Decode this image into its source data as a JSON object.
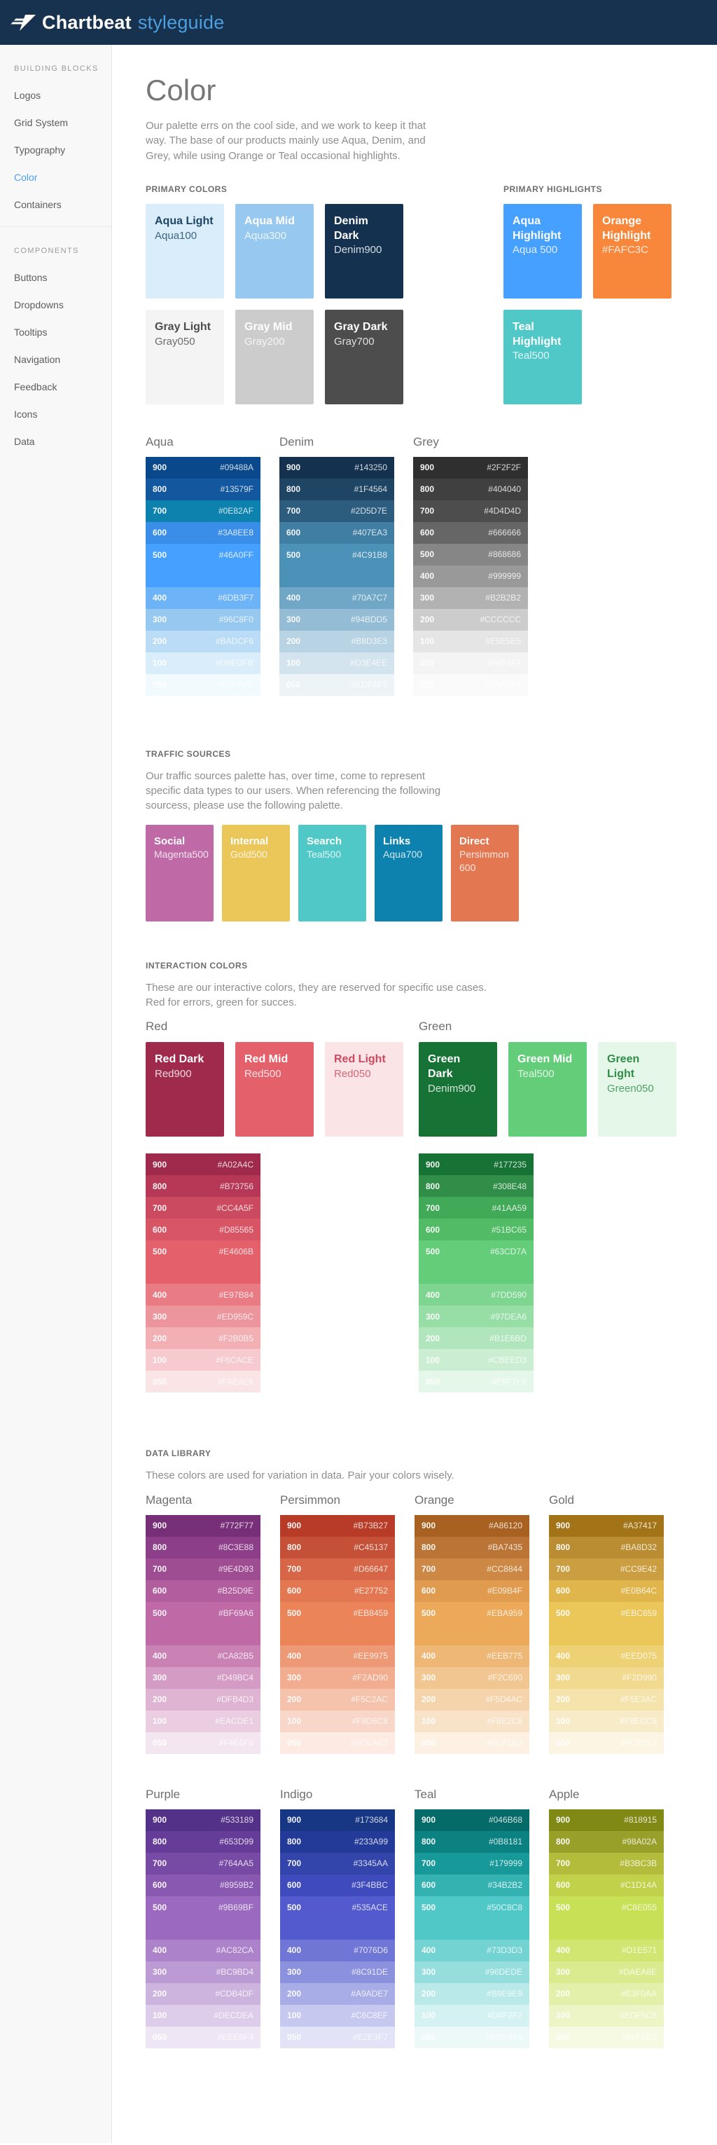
{
  "theme": {
    "navbar_bg": "#16324E",
    "brand_text_color": "#FFFFFF",
    "brand_suffix_color": "#4D9FE0",
    "sidebar_active_color": "#4A9FF5"
  },
  "navbar": {
    "brand": "Chartbeat",
    "suffix": "styleguide"
  },
  "sidebar": {
    "sections": [
      {
        "title": "BUILDING BLOCKS",
        "items": [
          {
            "label": "Logos",
            "active": false
          },
          {
            "label": "Grid System",
            "active": false
          },
          {
            "label": "Typography",
            "active": false
          },
          {
            "label": "Color",
            "active": true
          },
          {
            "label": "Containers",
            "active": false
          }
        ]
      },
      {
        "title": "COMPONENTS",
        "items": [
          {
            "label": "Buttons",
            "active": false
          },
          {
            "label": "Dropdowns",
            "active": false
          },
          {
            "label": "Tooltips",
            "active": false
          },
          {
            "label": "Navigation",
            "active": false
          },
          {
            "label": "Feedback",
            "active": false
          },
          {
            "label": "Icons",
            "active": false
          },
          {
            "label": "Data",
            "active": false
          }
        ]
      }
    ]
  },
  "page": {
    "title": "Color",
    "intro": "Our palette errs on the cool side, and we work to keep it that way. The base of our products mainly use Aqua, Denim, and Grey, while using Orange or Teal occasional highlights."
  },
  "primary_colors": {
    "label": "PRIMARY COLORS",
    "cards": [
      {
        "name": "Aqua Light",
        "token": "Aqua100",
        "bg": "#D9EDFB",
        "text": "#1F4564"
      },
      {
        "name": "Aqua Mid",
        "token": "Aqua300",
        "bg": "#96C8F0",
        "text": "#FFFFFF"
      },
      {
        "name": "Denim Dark",
        "token": "Denim900",
        "bg": "#143250",
        "text": "#FFFFFF"
      },
      {
        "name": "Gray Light",
        "token": "Gray050",
        "bg": "#F4F4F4",
        "text": "#4D4D4D"
      },
      {
        "name": "Gray Mid",
        "token": "Gray200",
        "bg": "#CCCCCC",
        "text": "#FFFFFF"
      },
      {
        "name": "Gray Dark",
        "token": "Gray700",
        "bg": "#4D4D4D",
        "text": "#FFFFFF"
      }
    ]
  },
  "primary_highlights": {
    "label": "PRIMARY HIGHLIGHTS",
    "cards": [
      {
        "name": "Aqua Highlight",
        "token": "Aqua 500",
        "bg": "#46A0FF",
        "text": "#FFFFFF"
      },
      {
        "name": "Orange Highlight",
        "token": "#FAFC3C",
        "bg": "#F8873C",
        "text": "#FFFFFF"
      },
      {
        "name": "Teal Highlight",
        "token": "Teal500",
        "bg": "#50C8C8",
        "text": "#FFFFFF"
      }
    ]
  },
  "scales_primary": [
    {
      "title": "Aqua",
      "tall_500": true,
      "rows": [
        [
          "900",
          "#09488A"
        ],
        [
          "800",
          "#13579F"
        ],
        [
          "700",
          "#0E82AF"
        ],
        [
          "600",
          "#3A8EE8"
        ],
        [
          "500",
          "#46A0FF"
        ],
        [
          "400",
          "#6DB3F7"
        ],
        [
          "300",
          "#96C8F0"
        ],
        [
          "200",
          "#BADCF6"
        ],
        [
          "100",
          "#D9EDFB"
        ],
        [
          "050",
          "#F0FAFF"
        ]
      ]
    },
    {
      "title": "Denim",
      "tall_500": true,
      "rows": [
        [
          "900",
          "#143250"
        ],
        [
          "800",
          "#1F4564"
        ],
        [
          "700",
          "#2D5D7E"
        ],
        [
          "600",
          "#407EA3"
        ],
        [
          "500",
          "#4C91B8"
        ],
        [
          "400",
          "#70A7C7"
        ],
        [
          "300",
          "#94BDD5"
        ],
        [
          "200",
          "#B8D3E3"
        ],
        [
          "100",
          "#D3E4EE"
        ],
        [
          "050",
          "#EDF4F7"
        ]
      ]
    },
    {
      "title": "Grey",
      "tall_500": false,
      "rows": [
        [
          "900",
          "#2F2F2F"
        ],
        [
          "800",
          "#404040"
        ],
        [
          "700",
          "#4D4D4D"
        ],
        [
          "600",
          "#666666"
        ],
        [
          "500",
          "#868686"
        ],
        [
          "400",
          "#999999"
        ],
        [
          "300",
          "#B2B2B2"
        ],
        [
          "200",
          "#CCCCCC"
        ],
        [
          "100",
          "#E5E5E5"
        ],
        [
          "050",
          "#F4F4F4"
        ],
        [
          "025",
          "#FAFAFA"
        ]
      ]
    }
  ],
  "traffic": {
    "label": "TRAFFIC SOURCES",
    "desc": "Our traffic sources palette has, over time, come to represent specific data types to our users. When referencing the following sourcess, please use the following palette.",
    "cards": [
      {
        "name": "Social",
        "token": "Magenta500",
        "bg": "#BF69A6"
      },
      {
        "name": "Internal",
        "token": "Gold500",
        "bg": "#EBC659"
      },
      {
        "name": "Search",
        "token": "Teal500",
        "bg": "#50C8C8"
      },
      {
        "name": "Links",
        "token": "Aqua700",
        "bg": "#0E82AF"
      },
      {
        "name": "Direct",
        "token": "Persimmon 600",
        "bg": "#E27752"
      }
    ]
  },
  "interaction": {
    "label": "INTERACTION COLORS",
    "desc_line1": "These are our interactive colors, they are reserved for specific use cases.",
    "desc_line2": "Red for errors, green for succes.",
    "groups": [
      {
        "title": "Red",
        "cards": [
          {
            "name": "Red Dark",
            "token": "Red900",
            "bg": "#A02A4C",
            "text": "#FFFFFF"
          },
          {
            "name": "Red Mid",
            "token": "Red500",
            "bg": "#E4606B",
            "text": "#FFFFFF"
          },
          {
            "name": "Red Light",
            "token": "Red050",
            "bg": "#FAE4E6",
            "text": "#CC4A5F"
          }
        ],
        "scale": {
          "tall_500": true,
          "rows": [
            [
              "900",
              "#A02A4C"
            ],
            [
              "800",
              "#B73756"
            ],
            [
              "700",
              "#CC4A5F"
            ],
            [
              "600",
              "#D85565"
            ],
            [
              "500",
              "#E4606B"
            ],
            [
              "400",
              "#E97B84"
            ],
            [
              "300",
              "#ED959C"
            ],
            [
              "200",
              "#F2B0B5"
            ],
            [
              "100",
              "#F6CACE"
            ],
            [
              "050",
              "#FAE4E6"
            ]
          ]
        }
      },
      {
        "title": "Green",
        "cards": [
          {
            "name": "Green Dark",
            "token": "Denim900",
            "bg": "#177235",
            "text": "#FFFFFF"
          },
          {
            "name": "Green Mid",
            "token": "Teal500",
            "bg": "#63CD7A",
            "text": "#FFFFFF"
          },
          {
            "name": "Green Light",
            "token": "Green050",
            "bg": "#E5F7E9",
            "text": "#308E48"
          }
        ],
        "scale": {
          "tall_500": true,
          "rows": [
            [
              "900",
              "#177235"
            ],
            [
              "800",
              "#308E48"
            ],
            [
              "700",
              "#41AA59"
            ],
            [
              "600",
              "#51BC65"
            ],
            [
              "500",
              "#63CD7A"
            ],
            [
              "400",
              "#7DD590"
            ],
            [
              "300",
              "#97DEA6"
            ],
            [
              "200",
              "#B1E6BD"
            ],
            [
              "100",
              "#CBEED3"
            ],
            [
              "050",
              "#E5F7E9"
            ]
          ]
        }
      }
    ]
  },
  "data_library": {
    "label": "DATA LIBRARY",
    "desc": "These colors are used for variation in data. Pair your colors wisely.",
    "rows": [
      [
        {
          "title": "Magenta",
          "tall_500": true,
          "rows": [
            [
              "900",
              "#772F77"
            ],
            [
              "800",
              "#8C3E88"
            ],
            [
              "700",
              "#9E4D93"
            ],
            [
              "600",
              "#B25D9E"
            ],
            [
              "500",
              "#BF69A6"
            ],
            [
              "400",
              "#CA82B5"
            ],
            [
              "300",
              "#D49BC4"
            ],
            [
              "200",
              "#DFB4D3"
            ],
            [
              "100",
              "#EACDE1"
            ],
            [
              "050",
              "#F4E6F0"
            ]
          ]
        },
        {
          "title": "Persimmon",
          "tall_500": true,
          "rows": [
            [
              "900",
              "#B73B27"
            ],
            [
              "800",
              "#C45137"
            ],
            [
              "700",
              "#D66647"
            ],
            [
              "600",
              "#E27752"
            ],
            [
              "500",
              "#EB8459"
            ],
            [
              "400",
              "#EE9975"
            ],
            [
              "300",
              "#F2AD90"
            ],
            [
              "200",
              "#F5C2AC"
            ],
            [
              "100",
              "#F8D6C8"
            ],
            [
              "050",
              "#FCEAE3"
            ]
          ]
        },
        {
          "title": "Orange",
          "tall_500": true,
          "rows": [
            [
              "900",
              "#A86120"
            ],
            [
              "800",
              "#BA7435"
            ],
            [
              "700",
              "#CC8844"
            ],
            [
              "600",
              "#E09B4F"
            ],
            [
              "500",
              "#EBA959"
            ],
            [
              "400",
              "#EEB775"
            ],
            [
              "300",
              "#F2C690"
            ],
            [
              "200",
              "#F5D4AC"
            ],
            [
              "100",
              "#F8E2C8"
            ],
            [
              "050",
              "#FCF1E3"
            ]
          ]
        },
        {
          "title": "Gold",
          "tall_500": true,
          "rows": [
            [
              "900",
              "#A37417"
            ],
            [
              "800",
              "#BA8D32"
            ],
            [
              "700",
              "#CC9E42"
            ],
            [
              "600",
              "#E0B64C"
            ],
            [
              "500",
              "#EBC659"
            ],
            [
              "400",
              "#EED075"
            ],
            [
              "300",
              "#F2D990"
            ],
            [
              "200",
              "#F5E3AC"
            ],
            [
              "100",
              "#F8ECC8"
            ],
            [
              "050",
              "#FCF5E3"
            ]
          ]
        }
      ],
      [
        {
          "title": "Purple",
          "tall_500": true,
          "rows": [
            [
              "900",
              "#533189"
            ],
            [
              "800",
              "#653D99"
            ],
            [
              "700",
              "#764AA5"
            ],
            [
              "600",
              "#8959B2"
            ],
            [
              "500",
              "#9B69BF"
            ],
            [
              "400",
              "#AC82CA"
            ],
            [
              "300",
              "#BC9BD4"
            ],
            [
              "200",
              "#CDB4DF"
            ],
            [
              "100",
              "#DECDEA"
            ],
            [
              "050",
              "#EEE6F4"
            ]
          ]
        },
        {
          "title": "Indigo",
          "tall_500": true,
          "rows": [
            [
              "900",
              "#173684"
            ],
            [
              "800",
              "#233A99"
            ],
            [
              "700",
              "#3345AA"
            ],
            [
              "600",
              "#3F4BBC"
            ],
            [
              "500",
              "#535ACE"
            ],
            [
              "400",
              "#7076D6"
            ],
            [
              "300",
              "#8C91DE"
            ],
            [
              "200",
              "#A9ADE7"
            ],
            [
              "100",
              "#C6C8EF"
            ],
            [
              "050",
              "#E2E3F7"
            ]
          ]
        },
        {
          "title": "Teal",
          "tall_500": true,
          "rows": [
            [
              "900",
              "#046B68"
            ],
            [
              "800",
              "#0B8181"
            ],
            [
              "700",
              "#179999"
            ],
            [
              "600",
              "#34B2B2"
            ],
            [
              "500",
              "#50C8C8"
            ],
            [
              "400",
              "#73D3D3"
            ],
            [
              "300",
              "#96DEDE"
            ],
            [
              "200",
              "#B9E9E9"
            ],
            [
              "100",
              "#D4F2F2"
            ],
            [
              "050",
              "#EDF9F9"
            ]
          ]
        },
        {
          "title": "Apple",
          "tall_500": true,
          "rows": [
            [
              "900",
              "#818915"
            ],
            [
              "800",
              "#98A02A"
            ],
            [
              "700",
              "#B3BC3B"
            ],
            [
              "600",
              "#C1D14A"
            ],
            [
              "500",
              "#C8E055"
            ],
            [
              "400",
              "#D1E571"
            ],
            [
              "300",
              "#DAEA8E"
            ],
            [
              "200",
              "#E3F0AA"
            ],
            [
              "100",
              "#EDF5C6"
            ],
            [
              "050",
              "#F6FAE3"
            ]
          ]
        }
      ]
    ]
  }
}
